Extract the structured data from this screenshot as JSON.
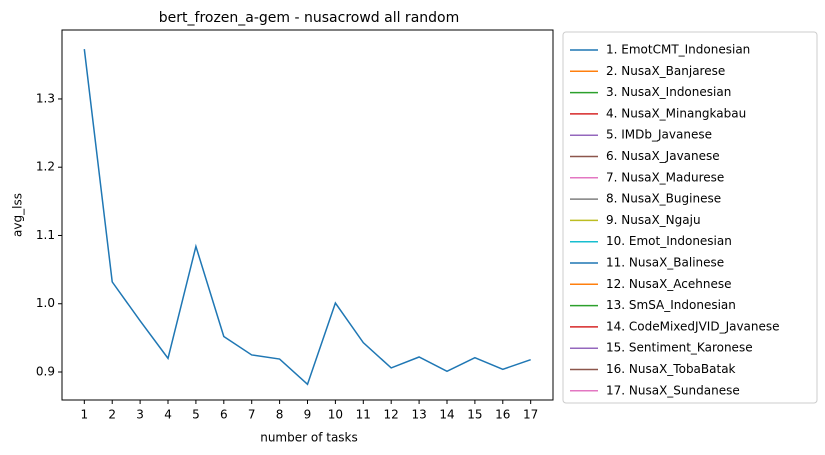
{
  "chart_data": {
    "type": "line",
    "title": "bert_frozen_a-gem - nusacrowd all random",
    "xlabel": "number of tasks",
    "ylabel": "avg_lss",
    "x": [
      1,
      2,
      3,
      4,
      5,
      6,
      7,
      8,
      9,
      10,
      11,
      12,
      13,
      14,
      15,
      16,
      17
    ],
    "xlim": [
      0.2,
      17.8
    ],
    "xticks": [
      1,
      2,
      3,
      4,
      5,
      6,
      7,
      8,
      9,
      10,
      11,
      12,
      13,
      14,
      15,
      16,
      17
    ],
    "ylim": [
      0.859,
      1.401
    ],
    "yticks": [
      0.9,
      {
        "value": 1,
        "label": "1.0"
      },
      1.1,
      1.2,
      1.3
    ],
    "grid": false,
    "legend": "outside right",
    "series": [
      {
        "name": "1. EmotCMT_Indonesian",
        "color": "#1f77b4",
        "values": [
          1.373,
          1.032,
          0.975,
          0.92,
          1.084,
          0.952,
          0.925,
          0.919,
          0.882,
          1.001,
          0.943,
          0.906,
          0.922,
          0.901,
          0.921,
          0.904,
          0.918
        ]
      },
      {
        "name": "2. NusaX_Banjarese",
        "color": "#ff7f0e",
        "values": [
          null,
          null,
          null,
          null,
          null,
          null,
          null,
          null,
          null,
          null,
          null,
          null,
          null,
          null,
          null,
          null,
          null
        ]
      },
      {
        "name": "3. NusaX_Indonesian",
        "color": "#2ca02c",
        "values": [
          null,
          null,
          null,
          null,
          null,
          null,
          null,
          null,
          null,
          null,
          null,
          null,
          null,
          null,
          null,
          null,
          null
        ]
      },
      {
        "name": "4. NusaX_Minangkabau",
        "color": "#d62728",
        "values": [
          null,
          null,
          null,
          null,
          null,
          null,
          null,
          null,
          null,
          null,
          null,
          null,
          null,
          null,
          null,
          null,
          null
        ]
      },
      {
        "name": "5. IMDb_Javanese",
        "color": "#9467bd",
        "values": [
          null,
          null,
          null,
          null,
          null,
          null,
          null,
          null,
          null,
          null,
          null,
          null,
          null,
          null,
          null,
          null,
          null
        ]
      },
      {
        "name": "6. NusaX_Javanese",
        "color": "#8c564b",
        "values": [
          null,
          null,
          null,
          null,
          null,
          null,
          null,
          null,
          null,
          null,
          null,
          null,
          null,
          null,
          null,
          null,
          null
        ]
      },
      {
        "name": "7. NusaX_Madurese",
        "color": "#e377c2",
        "values": [
          null,
          null,
          null,
          null,
          null,
          null,
          null,
          null,
          null,
          null,
          null,
          null,
          null,
          null,
          null,
          null,
          null
        ]
      },
      {
        "name": "8. NusaX_Buginese",
        "color": "#7f7f7f",
        "values": [
          null,
          null,
          null,
          null,
          null,
          null,
          null,
          null,
          null,
          null,
          null,
          null,
          null,
          null,
          null,
          null,
          null
        ]
      },
      {
        "name": "9. NusaX_Ngaju",
        "color": "#bcbd22",
        "values": [
          null,
          null,
          null,
          null,
          null,
          null,
          null,
          null,
          null,
          null,
          null,
          null,
          null,
          null,
          null,
          null,
          null
        ]
      },
      {
        "name": "10. Emot_Indonesian",
        "color": "#17becf",
        "values": [
          null,
          null,
          null,
          null,
          null,
          null,
          null,
          null,
          null,
          null,
          null,
          null,
          null,
          null,
          null,
          null,
          null
        ]
      },
      {
        "name": "11. NusaX_Balinese",
        "color": "#1f77b4",
        "values": [
          null,
          null,
          null,
          null,
          null,
          null,
          null,
          null,
          null,
          null,
          null,
          null,
          null,
          null,
          null,
          null,
          null
        ]
      },
      {
        "name": "12. NusaX_Acehnese",
        "color": "#ff7f0e",
        "values": [
          null,
          null,
          null,
          null,
          null,
          null,
          null,
          null,
          null,
          null,
          null,
          null,
          null,
          null,
          null,
          null,
          null
        ]
      },
      {
        "name": "13. SmSA_Indonesian",
        "color": "#2ca02c",
        "values": [
          null,
          null,
          null,
          null,
          null,
          null,
          null,
          null,
          null,
          null,
          null,
          null,
          null,
          null,
          null,
          null,
          null
        ]
      },
      {
        "name": "14. CodeMixedJVID_Javanese",
        "color": "#d62728",
        "values": [
          null,
          null,
          null,
          null,
          null,
          null,
          null,
          null,
          null,
          null,
          null,
          null,
          null,
          null,
          null,
          null,
          null
        ]
      },
      {
        "name": "15. Sentiment_Karonese",
        "color": "#9467bd",
        "values": [
          null,
          null,
          null,
          null,
          null,
          null,
          null,
          null,
          null,
          null,
          null,
          null,
          null,
          null,
          null,
          null,
          null
        ]
      },
      {
        "name": "16. NusaX_TobaBatak",
        "color": "#8c564b",
        "values": [
          null,
          null,
          null,
          null,
          null,
          null,
          null,
          null,
          null,
          null,
          null,
          null,
          null,
          null,
          null,
          null,
          null
        ]
      },
      {
        "name": "17. NusaX_Sundanese",
        "color": "#e377c2",
        "values": [
          null,
          null,
          null,
          null,
          null,
          null,
          null,
          null,
          null,
          null,
          null,
          null,
          null,
          null,
          null,
          null,
          null
        ]
      }
    ]
  }
}
